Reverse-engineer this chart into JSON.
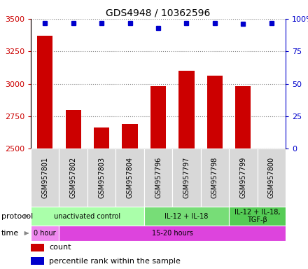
{
  "title": "GDS4948 / 10362596",
  "samples": [
    "GSM957801",
    "GSM957802",
    "GSM957803",
    "GSM957804",
    "GSM957796",
    "GSM957797",
    "GSM957798",
    "GSM957799",
    "GSM957800"
  ],
  "counts": [
    3370,
    2800,
    2660,
    2690,
    2980,
    3100,
    3060,
    2980,
    2500
  ],
  "percentile_ranks": [
    97,
    97,
    97,
    97,
    93,
    97,
    97,
    96,
    97
  ],
  "bar_color": "#cc0000",
  "dot_color": "#0000cc",
  "ylim_left": [
    2500,
    3500
  ],
  "ylim_right": [
    0,
    100
  ],
  "yticks_left": [
    2500,
    2750,
    3000,
    3250,
    3500
  ],
  "yticks_right": [
    0,
    25,
    50,
    75,
    100
  ],
  "protocol_groups": [
    {
      "label": "unactivated control",
      "start": 0,
      "end": 4,
      "color": "#aaffaa"
    },
    {
      "label": "IL-12 + IL-18",
      "start": 4,
      "end": 7,
      "color": "#77dd77"
    },
    {
      "label": "IL-12 + IL-18,\nTGF-β",
      "start": 7,
      "end": 9,
      "color": "#55cc55"
    }
  ],
  "time_groups": [
    {
      "label": "0 hour",
      "start": 0,
      "end": 1,
      "color": "#ee88ee"
    },
    {
      "label": "15-20 hours",
      "start": 1,
      "end": 9,
      "color": "#dd44dd"
    }
  ],
  "legend_items": [
    {
      "label": "count",
      "color": "#cc0000"
    },
    {
      "label": "percentile rank within the sample",
      "color": "#0000cc"
    }
  ],
  "grid_color": "#888888",
  "axis_color_left": "#cc0000",
  "axis_color_right": "#0000cc",
  "bar_width": 0.55,
  "protocol_label": "protocol",
  "time_label": "time",
  "fig_width": 4.4,
  "fig_height": 3.84,
  "dpi": 100
}
